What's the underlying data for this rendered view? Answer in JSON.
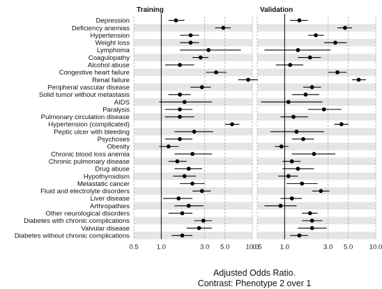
{
  "chart_data": {
    "type": "forest",
    "x_scale": "log",
    "xlim": [
      0.5,
      10
    ],
    "xticks": [
      0.5,
      1.0,
      3.0,
      5.0,
      10.0
    ],
    "xtick_labels": [
      "0.5",
      "1.0",
      "3.0",
      "5.0",
      "10.0"
    ],
    "reference_line": 1.0,
    "xlabel": "Adjusted Odds Ratio.",
    "subtitle": "Contrast: Phenotype 2 over 1",
    "grid": "dashed vertical at ticks, alternating horizontal row bands",
    "categories": [
      "Depression",
      "Deficiency anemias",
      "Hypertension",
      "Weight loss",
      "Lymphoma",
      "Coagulopathy",
      "Alcohol abuse",
      "Congestive heart failure",
      "Renal failure",
      "Peripheral vascular disease",
      "Solid tumor without metastasis",
      "AIDS",
      "Paralysis",
      "Pulmonary circulation disease",
      "Hypertension (complicated)",
      "Peptic ulcer with bleeding",
      "Psychoses",
      "Obesity",
      "Chronic blood loss anemia",
      "Chronic pulmonary disease",
      "Drug abuse",
      "Hypothyroidism",
      "Metastatic cancer",
      "Fluid and electrolyte disorders",
      "Liver disease",
      "Arthropathies",
      "Other neurological disorders",
      "Diabetes with chronic complications",
      "Valvular disease",
      "Diabetes without chronic complications"
    ],
    "panels": [
      {
        "title": "Training",
        "estimates": [
          1.45,
          4.8,
          2.1,
          2.1,
          3.3,
          2.7,
          1.6,
          4.0,
          9.0,
          2.8,
          1.6,
          1.8,
          1.6,
          1.6,
          6.0,
          2.3,
          1.6,
          1.2,
          2.2,
          1.5,
          2.0,
          1.8,
          2.2,
          2.8,
          1.55,
          2.0,
          1.7,
          2.9,
          2.6,
          1.7
        ],
        "lower": [
          1.2,
          3.9,
          1.6,
          1.6,
          1.6,
          2.2,
          1.1,
          3.1,
          7.0,
          2.1,
          1.2,
          0.95,
          1.1,
          1.1,
          5.0,
          1.4,
          1.1,
          0.95,
          1.4,
          1.2,
          1.4,
          1.35,
          1.6,
          2.2,
          1.05,
          1.4,
          1.2,
          2.3,
          1.9,
          1.3
        ],
        "upper": [
          1.8,
          5.8,
          2.6,
          2.6,
          7.5,
          3.3,
          2.3,
          5.2,
          11.5,
          3.5,
          2.1,
          3.6,
          2.2,
          2.3,
          7.2,
          3.7,
          2.2,
          1.55,
          3.6,
          1.9,
          2.8,
          2.4,
          3.0,
          3.5,
          2.2,
          2.9,
          2.2,
          3.6,
          3.6,
          2.2
        ]
      },
      {
        "title": "Validation",
        "estimates": [
          1.45,
          4.6,
          2.2,
          3.6,
          1.4,
          1.9,
          1.15,
          3.8,
          6.5,
          2.0,
          1.7,
          1.1,
          2.7,
          1.25,
          4.2,
          1.35,
          1.6,
          0.92,
          2.1,
          1.2,
          1.4,
          1.1,
          1.55,
          2.5,
          1.2,
          0.9,
          1.9,
          2.0,
          2.0,
          1.45
        ],
        "lower": [
          1.15,
          3.8,
          1.8,
          2.7,
          0.6,
          1.4,
          0.8,
          3.0,
          5.5,
          1.6,
          1.2,
          0.55,
          1.8,
          0.9,
          3.5,
          0.7,
          1.2,
          0.78,
          1.2,
          0.95,
          0.95,
          0.85,
          1.05,
          2.0,
          0.9,
          0.6,
          1.55,
          1.55,
          1.4,
          1.15
        ],
        "upper": [
          1.8,
          5.5,
          2.7,
          4.8,
          3.2,
          2.5,
          1.6,
          4.8,
          7.8,
          2.5,
          2.4,
          2.6,
          4.2,
          1.8,
          5.0,
          2.7,
          2.1,
          1.1,
          3.6,
          1.5,
          2.1,
          1.4,
          2.3,
          3.1,
          1.55,
          1.35,
          2.3,
          2.6,
          2.9,
          1.8
        ]
      }
    ]
  },
  "colors": {
    "band": "#e5e5e5",
    "grid": "#a8a8a8",
    "mark": "#000000",
    "text": "#111111"
  }
}
